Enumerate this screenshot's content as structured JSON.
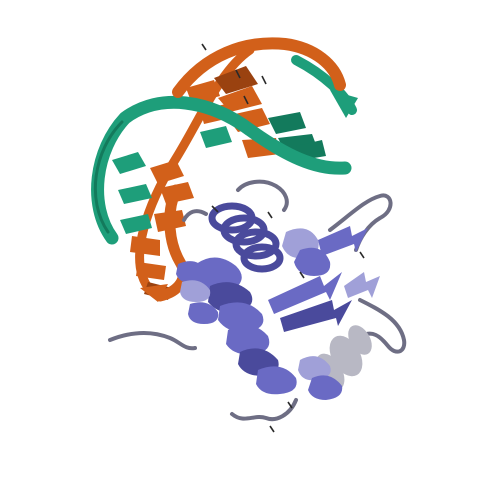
{
  "scene": {
    "kind": "protein-DNA complex cartoon",
    "colors": {
      "background": "#ffffff",
      "dna_strand_a": "#1e9e7a",
      "dna_strand_a_dark": "#137a5c",
      "dna_strand_b": "#d2601a",
      "dna_strand_b_dark": "#9a4210",
      "protein_main": "#6a6ac4",
      "protein_dark": "#4a4a9c",
      "protein_light": "#a0a0d8",
      "loop": "#6e6e84",
      "loop_light": "#b8b8c4",
      "base_tick": "#2a2a2a"
    }
  }
}
